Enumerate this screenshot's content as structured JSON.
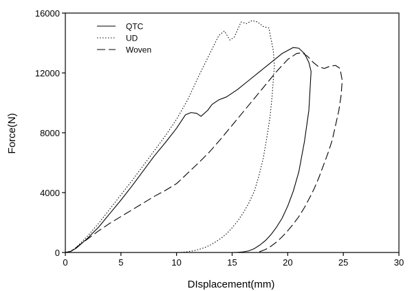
{
  "chart_data": {
    "type": "line",
    "title": "",
    "xlabel": "DIsplacement(mm)",
    "ylabel": "Force(N)",
    "xlim": [
      0,
      30
    ],
    "ylim": [
      0,
      16000
    ],
    "xticks": [
      0,
      5,
      10,
      15,
      20,
      25,
      30
    ],
    "yticks": [
      0,
      4000,
      8000,
      12000,
      16000
    ],
    "grid": false,
    "legend_position": "top-left",
    "series": [
      {
        "name": "QTC",
        "style": "solid",
        "x": [
          0,
          0.5,
          1,
          2,
          3,
          4,
          5,
          6,
          7,
          8,
          9,
          10,
          10.8,
          11.3,
          11.8,
          12.2,
          12.8,
          13.2,
          13.8,
          14.5,
          15.5,
          16.5,
          17.5,
          18.5,
          19.5,
          20.5,
          21.0,
          21.5,
          21.9,
          22.1,
          21.9,
          21.5,
          21.0,
          20.5,
          20.0,
          19.5,
          19.0,
          18.5,
          18.0,
          17.5,
          17.0,
          16.5,
          16.0,
          15.5,
          15.0,
          14.7
        ],
        "y": [
          0,
          80,
          300,
          950,
          1700,
          2600,
          3500,
          4450,
          5450,
          6450,
          7350,
          8300,
          9200,
          9350,
          9300,
          9100,
          9500,
          9900,
          10200,
          10400,
          10900,
          11500,
          12100,
          12700,
          13300,
          13700,
          13650,
          13300,
          12700,
          12100,
          9500,
          7400,
          5400,
          4100,
          3100,
          2300,
          1700,
          1200,
          800,
          500,
          260,
          110,
          40,
          10,
          0,
          0
        ]
      },
      {
        "name": "UD",
        "style": "dotted",
        "x": [
          0,
          0.5,
          1,
          2,
          3,
          4,
          5,
          6,
          7,
          8,
          9,
          10,
          11,
          12,
          13,
          13.8,
          14.3,
          14.8,
          15.2,
          15.8,
          16.3,
          16.8,
          17.3,
          17.8,
          18.3,
          18.7,
          18.8,
          18.6,
          18.4,
          18.1,
          17.8,
          17.4,
          17.0,
          16.5,
          16.0,
          15.5,
          15.0,
          14.5,
          14.0,
          13.5,
          13.0,
          12.5,
          12.0,
          11.5,
          11.0,
          10.5,
          10.0
        ],
        "y": [
          0,
          80,
          350,
          1100,
          1950,
          2900,
          3850,
          4800,
          5800,
          6800,
          7800,
          8900,
          10200,
          11800,
          13300,
          14500,
          14800,
          14200,
          14400,
          15400,
          15300,
          15500,
          15400,
          15100,
          15000,
          13500,
          12500,
          10500,
          9000,
          7600,
          6300,
          5100,
          4100,
          3300,
          2650,
          2100,
          1650,
          1250,
          950,
          700,
          480,
          320,
          200,
          110,
          50,
          15,
          0
        ]
      },
      {
        "name": "Woven",
        "style": "dashed",
        "x": [
          0,
          0.5,
          1,
          2,
          3,
          4,
          5,
          6,
          7,
          8,
          9,
          10,
          11,
          12,
          13,
          14,
          15,
          16,
          17,
          18,
          19,
          20,
          20.8,
          21.3,
          21.8,
          22.3,
          22.8,
          23.3,
          23.8,
          24.3,
          24.7,
          24.9,
          24.8,
          24.6,
          24.3,
          24.0,
          23.6,
          23.2,
          22.8,
          22.4,
          22.0,
          21.5,
          21.0,
          20.5,
          20.0,
          19.5,
          19.0,
          18.5,
          18.0,
          17.5,
          17.2
        ],
        "y": [
          0,
          80,
          350,
          900,
          1450,
          1950,
          2400,
          2850,
          3300,
          3750,
          4150,
          4600,
          5300,
          6000,
          6750,
          7600,
          8500,
          9400,
          10300,
          11200,
          12100,
          12900,
          13300,
          13350,
          13100,
          12700,
          12400,
          12300,
          12450,
          12500,
          12300,
          11500,
          10500,
          9500,
          8500,
          7500,
          6600,
          5800,
          5000,
          4300,
          3700,
          3000,
          2400,
          1900,
          1450,
          1050,
          700,
          420,
          200,
          60,
          0
        ]
      }
    ]
  }
}
